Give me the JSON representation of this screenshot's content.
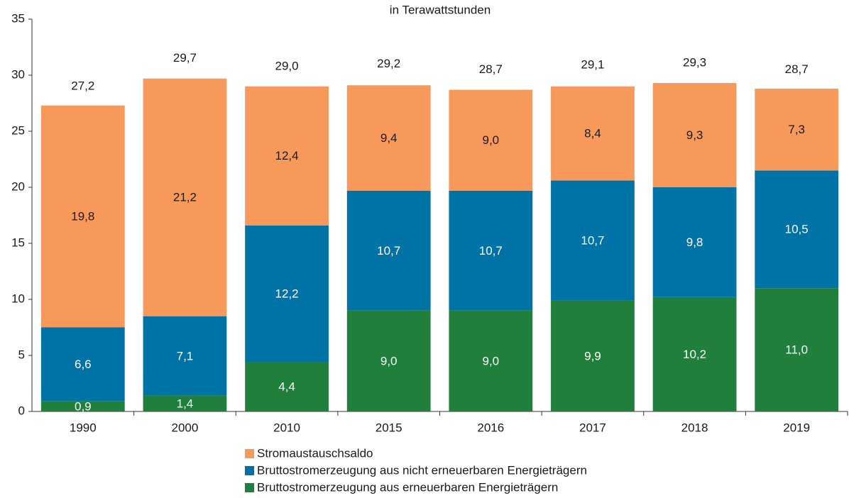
{
  "chart_data": {
    "type": "stacked_bar",
    "subtitle": "in Terawattstunden",
    "categories": [
      "1990",
      "2000",
      "2010",
      "2015",
      "2016",
      "2017",
      "2018",
      "2019"
    ],
    "series": [
      {
        "name": "Bruttostromerzeugung aus erneuerbaren Energieträgern",
        "color": "#1f7f3b",
        "values": [
          0.9,
          1.4,
          4.4,
          9.0,
          9.0,
          9.9,
          10.2,
          11.0
        ],
        "value_labels": [
          "0,9",
          "1,4",
          "4,4",
          "9,0",
          "9,0",
          "9,9",
          "10,2",
          "11,0"
        ]
      },
      {
        "name": "Bruttostromerzeugung aus nicht erneuerbaren Energieträgern",
        "color": "#0073a6",
        "values": [
          6.6,
          7.1,
          12.2,
          10.7,
          10.7,
          10.7,
          9.8,
          10.5
        ],
        "value_labels": [
          "6,6",
          "7,1",
          "12,2",
          "10,7",
          "10,7",
          "10,7",
          "9,8",
          "10,5"
        ]
      },
      {
        "name": "Stromaustauschsaldo",
        "color": "#f7995a",
        "values": [
          19.8,
          21.2,
          12.4,
          9.4,
          9.0,
          8.4,
          9.3,
          7.3
        ],
        "value_labels": [
          "19,8",
          "21,2",
          "12,4",
          "9,4",
          "9,0",
          "8,4",
          "9,3",
          "7,3"
        ]
      }
    ],
    "totals": [
      27.2,
      29.7,
      29.0,
      29.2,
      28.7,
      29.1,
      29.3,
      28.7
    ],
    "total_labels": [
      "27,2",
      "29,7",
      "29,0",
      "29,2",
      "28,7",
      "29,1",
      "29,3",
      "28,7"
    ],
    "ylim": [
      0,
      35
    ],
    "yticks": [
      0,
      5,
      10,
      15,
      20,
      25,
      30,
      35
    ],
    "grid": false
  }
}
